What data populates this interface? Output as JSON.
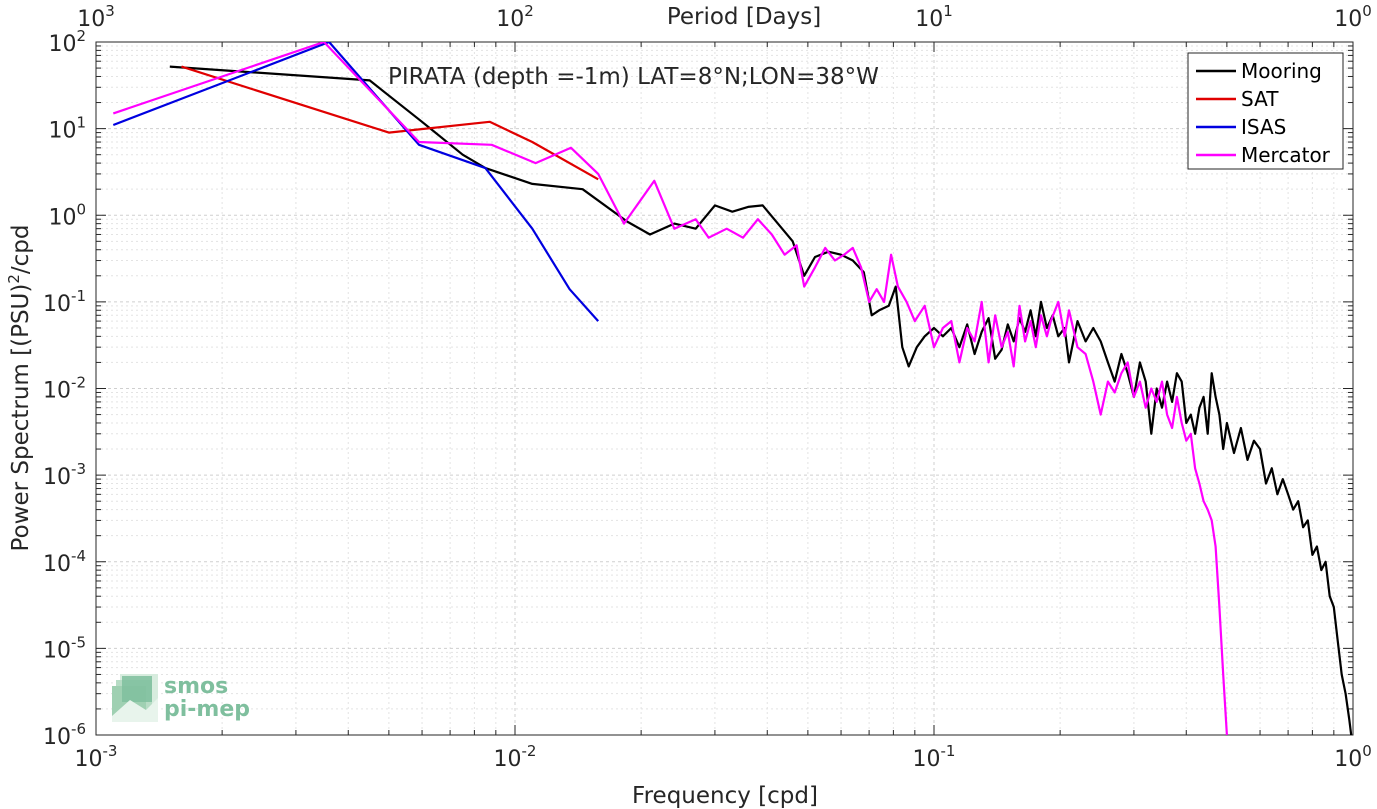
{
  "chart_data": {
    "type": "line",
    "title": "PIRATA (depth =-1m) LAT=8°N;LON=38°W",
    "xlabel": "Frequency [cpd]",
    "ylabel_main": "Power Spectrum [(PSU)",
    "ylabel_sup": "2",
    "ylabel_tail": "/cpd",
    "top_xlabel": "Period [Days]",
    "x_scale": "log",
    "y_scale": "log",
    "xlim": [
      0.001,
      1
    ],
    "ylim": [
      1e-06,
      100
    ],
    "grid": true,
    "legend_position": "top-right",
    "x_ticks": [
      {
        "value": 0.001,
        "base": "10",
        "exp": "-3"
      },
      {
        "value": 0.01,
        "base": "10",
        "exp": "-2"
      },
      {
        "value": 0.1,
        "base": "10",
        "exp": "-1"
      },
      {
        "value": 1,
        "base": "10",
        "exp": "0"
      }
    ],
    "y_ticks": [
      {
        "value": 100,
        "base": "10",
        "exp": "2"
      },
      {
        "value": 10,
        "base": "10",
        "exp": "1"
      },
      {
        "value": 1,
        "base": "10",
        "exp": "0"
      },
      {
        "value": 0.1,
        "base": "10",
        "exp": "-1"
      },
      {
        "value": 0.01,
        "base": "10",
        "exp": "-2"
      },
      {
        "value": 0.001,
        "base": "10",
        "exp": "-3"
      },
      {
        "value": 0.0001,
        "base": "10",
        "exp": "-4"
      },
      {
        "value": 1e-05,
        "base": "10",
        "exp": "-5"
      },
      {
        "value": 1e-06,
        "base": "10",
        "exp": "-6"
      }
    ],
    "top_ticks": [
      {
        "value": 0.001,
        "base": "10",
        "exp": "3"
      },
      {
        "value": 0.01,
        "base": "10",
        "exp": "2"
      },
      {
        "value": 0.1,
        "base": "10",
        "exp": "1"
      },
      {
        "value": 1,
        "base": "10",
        "exp": "0"
      }
    ],
    "series": [
      {
        "name": "Mooring",
        "color": "#000000",
        "points": [
          [
            0.0015,
            52
          ],
          [
            0.0045,
            36
          ],
          [
            0.006,
            12
          ],
          [
            0.0075,
            5
          ],
          [
            0.0085,
            3.5
          ],
          [
            0.011,
            2.3
          ],
          [
            0.0145,
            2.0
          ],
          [
            0.0185,
            0.85
          ],
          [
            0.021,
            0.6
          ],
          [
            0.024,
            0.8
          ],
          [
            0.027,
            0.7
          ],
          [
            0.03,
            1.3
          ],
          [
            0.033,
            1.1
          ],
          [
            0.036,
            1.25
          ],
          [
            0.039,
            1.3
          ],
          [
            0.042,
            0.85
          ],
          [
            0.046,
            0.5
          ],
          [
            0.049,
            0.2
          ],
          [
            0.052,
            0.33
          ],
          [
            0.056,
            0.38
          ],
          [
            0.06,
            0.35
          ],
          [
            0.064,
            0.3
          ],
          [
            0.068,
            0.22
          ],
          [
            0.071,
            0.07
          ],
          [
            0.074,
            0.08
          ],
          [
            0.078,
            0.09
          ],
          [
            0.081,
            0.15
          ],
          [
            0.084,
            0.03
          ],
          [
            0.087,
            0.018
          ],
          [
            0.091,
            0.03
          ],
          [
            0.095,
            0.04
          ],
          [
            0.1,
            0.05
          ],
          [
            0.105,
            0.04
          ],
          [
            0.11,
            0.05
          ],
          [
            0.115,
            0.03
          ],
          [
            0.12,
            0.055
          ],
          [
            0.125,
            0.025
          ],
          [
            0.13,
            0.045
          ],
          [
            0.135,
            0.065
          ],
          [
            0.14,
            0.022
          ],
          [
            0.145,
            0.028
          ],
          [
            0.15,
            0.055
          ],
          [
            0.155,
            0.035
          ],
          [
            0.16,
            0.065
          ],
          [
            0.165,
            0.045
          ],
          [
            0.17,
            0.08
          ],
          [
            0.175,
            0.04
          ],
          [
            0.18,
            0.1
          ],
          [
            0.186,
            0.05
          ],
          [
            0.192,
            0.07
          ],
          [
            0.198,
            0.04
          ],
          [
            0.205,
            0.05
          ],
          [
            0.21,
            0.02
          ],
          [
            0.22,
            0.06
          ],
          [
            0.23,
            0.035
          ],
          [
            0.24,
            0.05
          ],
          [
            0.25,
            0.035
          ],
          [
            0.26,
            0.02
          ],
          [
            0.27,
            0.012
          ],
          [
            0.28,
            0.025
          ],
          [
            0.29,
            0.015
          ],
          [
            0.3,
            0.008
          ],
          [
            0.31,
            0.02
          ],
          [
            0.32,
            0.012
          ],
          [
            0.33,
            0.003
          ],
          [
            0.34,
            0.01
          ],
          [
            0.35,
            0.006
          ],
          [
            0.36,
            0.012
          ],
          [
            0.37,
            0.007
          ],
          [
            0.38,
            0.015
          ],
          [
            0.39,
            0.012
          ],
          [
            0.4,
            0.004
          ],
          [
            0.41,
            0.005
          ],
          [
            0.42,
            0.003
          ],
          [
            0.43,
            0.006
          ],
          [
            0.44,
            0.008
          ],
          [
            0.45,
            0.003
          ],
          [
            0.46,
            0.015
          ],
          [
            0.47,
            0.008
          ],
          [
            0.48,
            0.005
          ],
          [
            0.49,
            0.002
          ],
          [
            0.5,
            0.004
          ],
          [
            0.52,
            0.0018
          ],
          [
            0.54,
            0.0035
          ],
          [
            0.56,
            0.0015
          ],
          [
            0.58,
            0.0025
          ],
          [
            0.6,
            0.002
          ],
          [
            0.62,
            0.0008
          ],
          [
            0.64,
            0.0012
          ],
          [
            0.66,
            0.0006
          ],
          [
            0.68,
            0.0009
          ],
          [
            0.7,
            0.0006
          ],
          [
            0.72,
            0.0004
          ],
          [
            0.74,
            0.0005
          ],
          [
            0.76,
            0.00025
          ],
          [
            0.78,
            0.0003
          ],
          [
            0.8,
            0.00012
          ],
          [
            0.82,
            0.00015
          ],
          [
            0.84,
            8e-05
          ],
          [
            0.86,
            0.0001
          ],
          [
            0.88,
            4e-05
          ],
          [
            0.9,
            3e-05
          ],
          [
            0.92,
            1.2e-05
          ],
          [
            0.94,
            5e-06
          ],
          [
            0.96,
            3e-06
          ],
          [
            0.98,
            1.5e-06
          ],
          [
            0.99,
            1e-06
          ]
        ]
      },
      {
        "name": "SAT",
        "color": "#e00000",
        "points": [
          [
            0.0016,
            52
          ],
          [
            0.005,
            9
          ],
          [
            0.0087,
            12
          ],
          [
            0.011,
            7
          ],
          [
            0.0158,
            2.6
          ]
        ]
      },
      {
        "name": "ISAS",
        "color": "#0000e0",
        "points": [
          [
            0.0011,
            11
          ],
          [
            0.0036,
            100
          ],
          [
            0.0059,
            6.5
          ],
          [
            0.0085,
            3.5
          ],
          [
            0.011,
            0.7
          ],
          [
            0.0135,
            0.14
          ],
          [
            0.0158,
            0.06
          ]
        ]
      },
      {
        "name": "Mercator",
        "color": "#ff00ff",
        "points": [
          [
            0.0011,
            15
          ],
          [
            0.0035,
            100
          ],
          [
            0.0059,
            7
          ],
          [
            0.0088,
            6.5
          ],
          [
            0.0112,
            4
          ],
          [
            0.0136,
            6
          ],
          [
            0.0158,
            3
          ],
          [
            0.0182,
            0.8
          ],
          [
            0.0215,
            2.5
          ],
          [
            0.024,
            0.7
          ],
          [
            0.027,
            0.9
          ],
          [
            0.029,
            0.55
          ],
          [
            0.032,
            0.7
          ],
          [
            0.035,
            0.55
          ],
          [
            0.038,
            0.9
          ],
          [
            0.041,
            0.6
          ],
          [
            0.044,
            0.35
          ],
          [
            0.047,
            0.45
          ],
          [
            0.049,
            0.15
          ],
          [
            0.052,
            0.25
          ],
          [
            0.055,
            0.42
          ],
          [
            0.058,
            0.3
          ],
          [
            0.061,
            0.35
          ],
          [
            0.064,
            0.42
          ],
          [
            0.067,
            0.25
          ],
          [
            0.07,
            0.1
          ],
          [
            0.073,
            0.14
          ],
          [
            0.076,
            0.1
          ],
          [
            0.079,
            0.35
          ],
          [
            0.082,
            0.15
          ],
          [
            0.086,
            0.1
          ],
          [
            0.09,
            0.06
          ],
          [
            0.095,
            0.09
          ],
          [
            0.1,
            0.03
          ],
          [
            0.105,
            0.05
          ],
          [
            0.11,
            0.06
          ],
          [
            0.115,
            0.02
          ],
          [
            0.12,
            0.05
          ],
          [
            0.125,
            0.035
          ],
          [
            0.13,
            0.1
          ],
          [
            0.135,
            0.02
          ],
          [
            0.14,
            0.07
          ],
          [
            0.145,
            0.03
          ],
          [
            0.15,
            0.045
          ],
          [
            0.155,
            0.018
          ],
          [
            0.16,
            0.09
          ],
          [
            0.165,
            0.035
          ],
          [
            0.17,
            0.06
          ],
          [
            0.175,
            0.03
          ],
          [
            0.18,
            0.07
          ],
          [
            0.186,
            0.04
          ],
          [
            0.19,
            0.06
          ],
          [
            0.198,
            0.1
          ],
          [
            0.205,
            0.04
          ],
          [
            0.21,
            0.08
          ],
          [
            0.22,
            0.03
          ],
          [
            0.23,
            0.025
          ],
          [
            0.24,
            0.012
          ],
          [
            0.25,
            0.005
          ],
          [
            0.26,
            0.012
          ],
          [
            0.27,
            0.009
          ],
          [
            0.28,
            0.015
          ],
          [
            0.29,
            0.02
          ],
          [
            0.3,
            0.008
          ],
          [
            0.31,
            0.012
          ],
          [
            0.32,
            0.006
          ],
          [
            0.33,
            0.01
          ],
          [
            0.34,
            0.007
          ],
          [
            0.35,
            0.012
          ],
          [
            0.36,
            0.005
          ],
          [
            0.37,
            0.0035
          ],
          [
            0.38,
            0.008
          ],
          [
            0.39,
            0.004
          ],
          [
            0.4,
            0.0025
          ],
          [
            0.41,
            0.003
          ],
          [
            0.42,
            0.0012
          ],
          [
            0.43,
            0.0008
          ],
          [
            0.44,
            0.0005
          ],
          [
            0.45,
            0.0004
          ],
          [
            0.46,
            0.0003
          ],
          [
            0.47,
            0.00015
          ],
          [
            0.48,
            3e-05
          ],
          [
            0.49,
            5e-06
          ],
          [
            0.5,
            1e-06
          ]
        ]
      }
    ]
  },
  "logo": {
    "line1": "smos",
    "line2": "pi-mep"
  }
}
